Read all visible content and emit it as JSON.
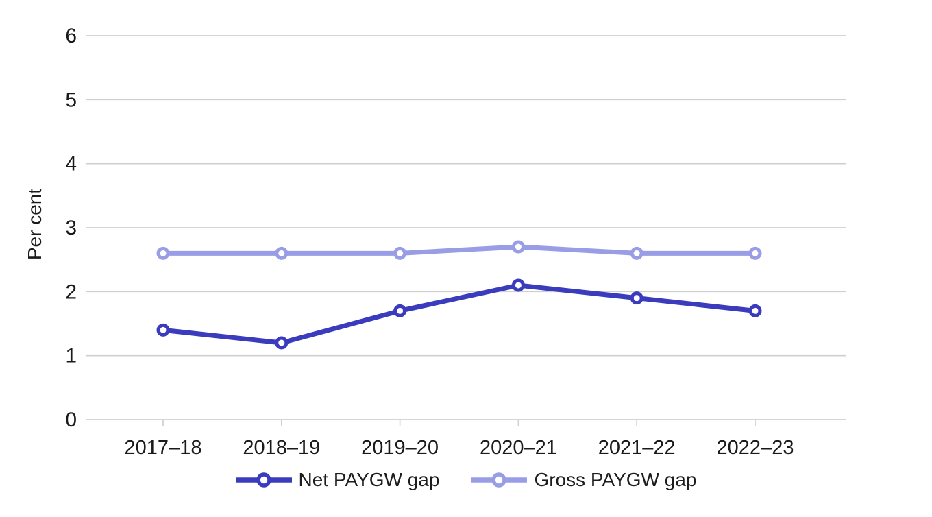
{
  "chart_data": {
    "type": "line",
    "title": "",
    "xlabel": "",
    "ylabel": "Per cent",
    "categories": [
      "2017–18",
      "2018–19",
      "2019–20",
      "2020–21",
      "2021–22",
      "2022–23"
    ],
    "series": [
      {
        "name": "Net PAYGW gap",
        "values": [
          1.4,
          1.2,
          1.7,
          2.1,
          1.9,
          1.7
        ],
        "color": "#3b3cbd"
      },
      {
        "name": "Gross PAYGW gap",
        "values": [
          2.6,
          2.6,
          2.6,
          2.7,
          2.6,
          2.6
        ],
        "color": "#999de6"
      }
    ],
    "ylim": [
      0,
      6
    ],
    "ytick_step": 1,
    "grid": "horizontal",
    "legend_position": "bottom",
    "marker": "open-circle",
    "gridline_color": "#cfcfcf",
    "axis_line_color": "#cfcfcf",
    "tick_label_color": "#1a1a1a"
  }
}
